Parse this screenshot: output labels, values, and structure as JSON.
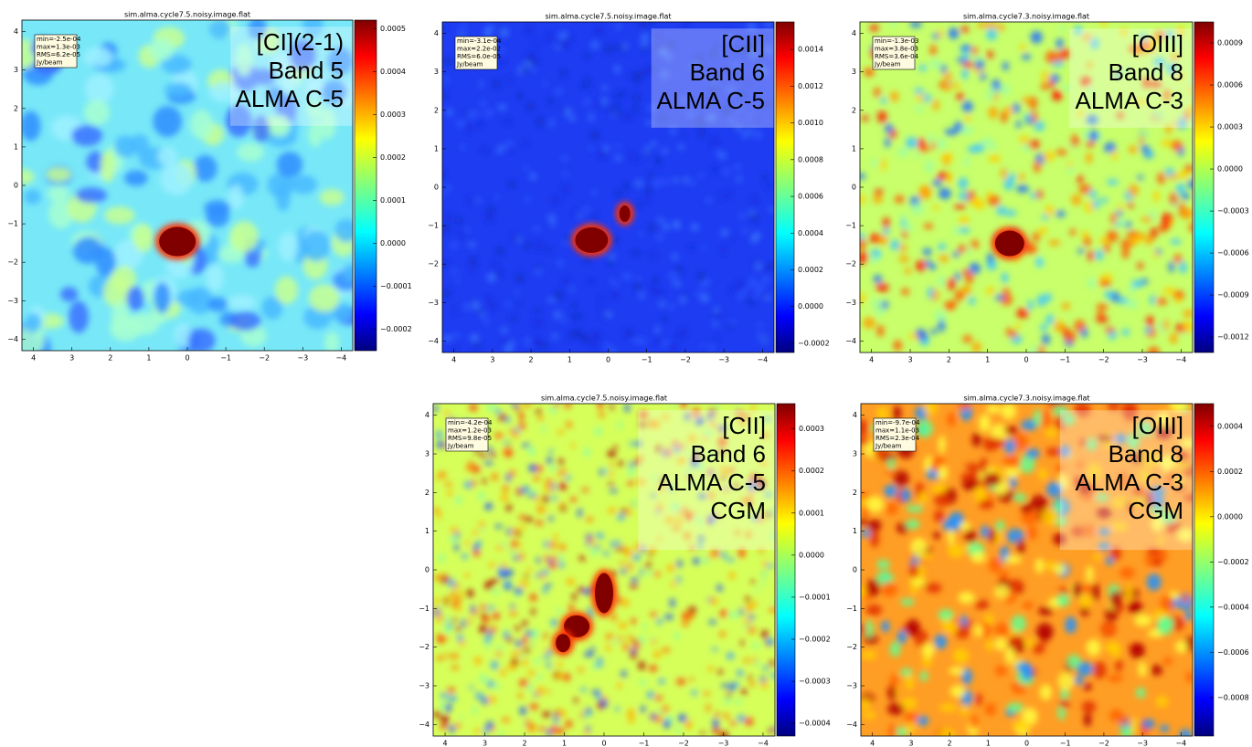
{
  "chart_data": [
    {
      "type": "heatmap",
      "title": "sim.alma.cycle7.5.noisy.image.flat",
      "stats": [
        "min=-2.5e-04",
        "max=1.3e-03",
        "RMS=6.2e-05",
        "Jy/beam"
      ],
      "label_lines": [
        "[CI](2-1)",
        "Band 5",
        "ALMA C-5"
      ],
      "xlim": [
        4.3,
        -4.3
      ],
      "xticks": [
        4,
        3,
        2,
        1,
        0,
        {
          "value": -1,
          "label": "−1"
        },
        {
          "value": -2,
          "label": "−2"
        },
        {
          "value": -3,
          "label": "−3"
        },
        {
          "value": -4,
          "label": "−4"
        }
      ],
      "ylim": [
        -4.3,
        4.3
      ],
      "yticks": [
        {
          "value": -4,
          "label": "−4"
        },
        {
          "value": -3,
          "label": "−3"
        },
        {
          "value": -2,
          "label": "−2"
        },
        {
          "value": -1,
          "label": "−1"
        },
        0,
        1,
        2,
        3,
        4
      ],
      "clim": [
        -0.00025,
        0.00052
      ],
      "cticks": [
        0.0005,
        0.0004,
        0.0003,
        0.0002,
        0.0001,
        {
          "value": 0,
          "label": "0.0000"
        },
        {
          "value": -0.0001,
          "label": "−0.0001"
        },
        {
          "value": -0.0002,
          "label": "−0.0002"
        }
      ]
    },
    {
      "type": "heatmap",
      "title": "sim.alma.cycle7.5.noisy.image.flat",
      "stats": [
        "min=-3.1e-04",
        "max=2.2e-02",
        "RMS=6.0e-05",
        "Jy/beam"
      ],
      "label_lines": [
        "[CII]",
        "Band 6",
        "ALMA C-5"
      ],
      "xlim": [
        4.3,
        -4.3
      ],
      "xticks": [
        4,
        3,
        2,
        1,
        0,
        {
          "value": -1,
          "label": "−1"
        },
        {
          "value": -2,
          "label": "−2"
        },
        {
          "value": -3,
          "label": "−3"
        },
        {
          "value": -4,
          "label": "−4"
        }
      ],
      "ylim": [
        -4.3,
        4.3
      ],
      "yticks": [
        {
          "value": -4,
          "label": "−4"
        },
        {
          "value": -3,
          "label": "−3"
        },
        {
          "value": -2,
          "label": "−2"
        },
        {
          "value": -1,
          "label": "−1"
        },
        0,
        1,
        2,
        3,
        4
      ],
      "clim": [
        -0.00025,
        0.00155
      ],
      "cticks": [
        0.0014,
        0.0012,
        {
          "value": 0.001,
          "label": "0.0010"
        },
        0.0008,
        0.0006,
        0.0004,
        0.0002,
        {
          "value": 0,
          "label": "0.0000"
        },
        {
          "value": -0.0002,
          "label": "−0.0002"
        }
      ]
    },
    {
      "type": "heatmap",
      "title": "sim.alma.cycle7.3.noisy.image.flat",
      "stats": [
        "min=-1.3e-03",
        "max=3.8e-03",
        "RMS=3.6e-04",
        "Jy/beam"
      ],
      "label_lines": [
        "[OIII]",
        "Band 8",
        "ALMA C-3"
      ],
      "xlim": [
        4.3,
        -4.3
      ],
      "xticks": [
        4,
        3,
        2,
        1,
        0,
        {
          "value": -1,
          "label": "−1"
        },
        {
          "value": -2,
          "label": "−2"
        },
        {
          "value": -3,
          "label": "−3"
        },
        {
          "value": -4,
          "label": "−4"
        }
      ],
      "ylim": [
        -4.3,
        4.3
      ],
      "yticks": [
        {
          "value": -4,
          "label": "−4"
        },
        {
          "value": -3,
          "label": "−3"
        },
        {
          "value": -2,
          "label": "−2"
        },
        {
          "value": -1,
          "label": "−1"
        },
        0,
        1,
        2,
        3,
        4
      ],
      "clim": [
        -0.00131,
        0.00105
      ],
      "cticks": [
        0.0009,
        0.0006,
        0.0003,
        {
          "value": 0,
          "label": "0.0000"
        },
        {
          "value": -0.0003,
          "label": "−0.0003"
        },
        {
          "value": -0.0006,
          "label": "−0.0006"
        },
        {
          "value": -0.0009,
          "label": "−0.0009"
        },
        {
          "value": -0.0012,
          "label": "−0.0012"
        }
      ]
    },
    {
      "type": "heatmap",
      "title": "sim.alma.cycle7.5.noisy.image.flat",
      "stats": [
        "min=-4.2e-04",
        "max=1.2e-03",
        "RMS=9.8e-05",
        "Jy/beam"
      ],
      "label_lines": [
        "[CII]",
        "Band 6",
        "ALMA C-5",
        "CGM"
      ],
      "xlim": [
        4.3,
        -4.3
      ],
      "xticks": [
        4,
        3,
        2,
        1,
        0,
        {
          "value": -1,
          "label": "−1"
        },
        {
          "value": -2,
          "label": "−2"
        },
        {
          "value": -3,
          "label": "−3"
        },
        {
          "value": -4,
          "label": "−4"
        }
      ],
      "ylim": [
        -4.3,
        4.3
      ],
      "yticks": [
        {
          "value": -4,
          "label": "−4"
        },
        {
          "value": -3,
          "label": "−3"
        },
        {
          "value": -2,
          "label": "−2"
        },
        {
          "value": -1,
          "label": "−1"
        },
        0,
        1,
        2,
        3,
        4
      ],
      "clim": [
        -0.00043,
        0.00036
      ],
      "cticks": [
        0.0003,
        0.0002,
        0.0001,
        {
          "value": 0,
          "label": "0.0000"
        },
        {
          "value": -0.0001,
          "label": "−0.0001"
        },
        {
          "value": -0.0002,
          "label": "−0.0002"
        },
        {
          "value": -0.0003,
          "label": "−0.0003"
        },
        {
          "value": -0.0004,
          "label": "−0.0004"
        }
      ]
    },
    {
      "type": "heatmap",
      "title": "sim.alma.cycle7.3.noisy.image.flat",
      "stats": [
        "min=-9.7e-04",
        "max=1.1e-03",
        "RMS=2.3e-04",
        "Jy/beam"
      ],
      "label_lines": [
        "[OIII]",
        "Band 8",
        "ALMA C-3",
        "CGM"
      ],
      "xlim": [
        4.3,
        -4.3
      ],
      "xticks": [
        4,
        3,
        2,
        1,
        0,
        {
          "value": -1,
          "label": "−1"
        },
        {
          "value": -2,
          "label": "−2"
        },
        {
          "value": -3,
          "label": "−3"
        },
        {
          "value": -4,
          "label": "−4"
        }
      ],
      "ylim": [
        -4.3,
        4.3
      ],
      "yticks": [
        {
          "value": -4,
          "label": "−4"
        },
        {
          "value": -3,
          "label": "−3"
        },
        {
          "value": -2,
          "label": "−2"
        },
        {
          "value": -1,
          "label": "−1"
        },
        0,
        1,
        2,
        3,
        4
      ],
      "clim": [
        -0.00097,
        0.0005
      ],
      "cticks": [
        0.0004,
        0.0002,
        {
          "value": 0,
          "label": "0.0000"
        },
        {
          "value": -0.0002,
          "label": "−0.0002"
        },
        {
          "value": -0.0004,
          "label": "−0.0004"
        },
        {
          "value": -0.0006,
          "label": "−0.0006"
        },
        {
          "value": -0.0008,
          "label": "−0.0008"
        }
      ]
    }
  ]
}
